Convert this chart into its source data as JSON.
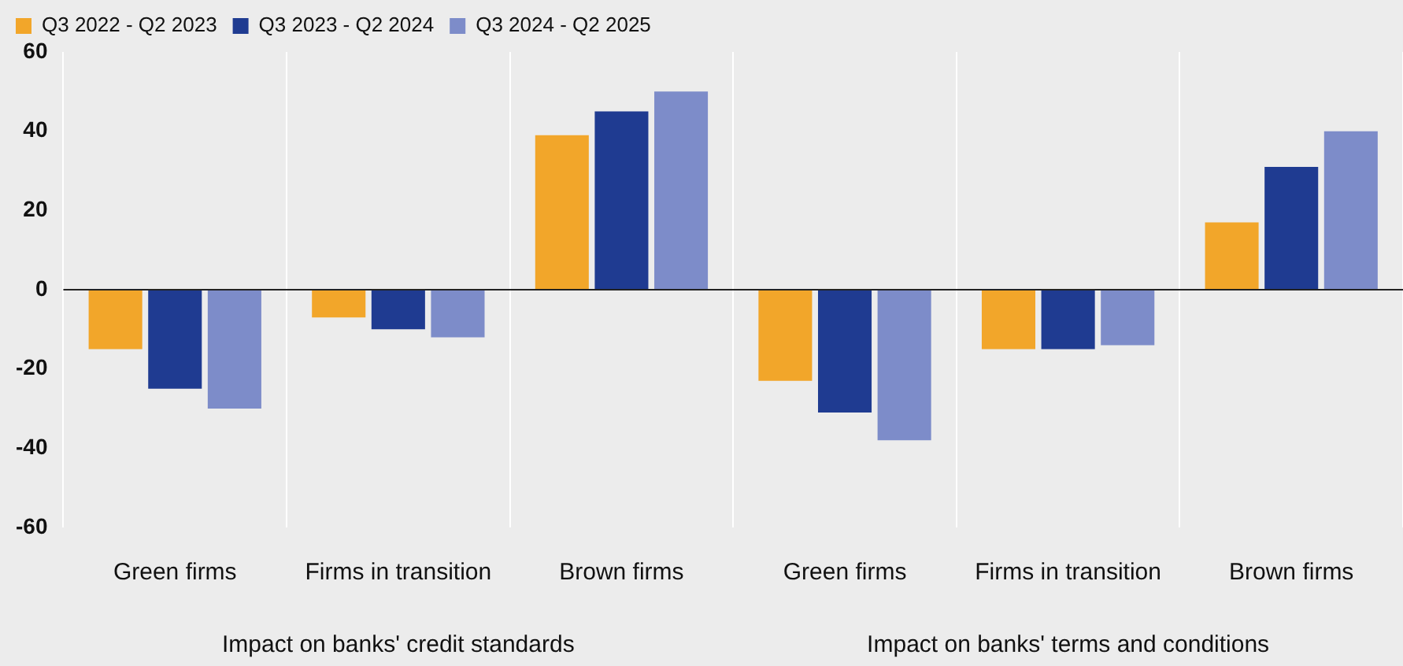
{
  "chart_data": {
    "type": "bar",
    "categories": [
      "Green firms",
      "Firms in transition",
      "Brown firms",
      "Green firms",
      "Firms in transition",
      "Brown firms"
    ],
    "series": [
      {
        "name": "Q3 2022 - Q2 2023",
        "color": "#f2a62a",
        "values": [
          -15,
          -7,
          39,
          -23,
          -15,
          17
        ]
      },
      {
        "name": "Q3 2023 - Q2 2024",
        "color": "#1f3b91",
        "values": [
          -25,
          -10,
          45,
          -31,
          -15,
          31
        ]
      },
      {
        "name": "Q3 2024 - Q2 2025",
        "color": "#7d8cc9",
        "values": [
          -30,
          -12,
          50,
          -38,
          -14,
          40
        ]
      }
    ],
    "ylim": [
      -60,
      60
    ],
    "yticks": [
      -60,
      -40,
      -20,
      0,
      20,
      40,
      60
    ],
    "grid": "x",
    "legend": "top left",
    "annotations": [
      "Impact on banks' credit standards",
      "Impact on banks' terms and conditions"
    ]
  }
}
